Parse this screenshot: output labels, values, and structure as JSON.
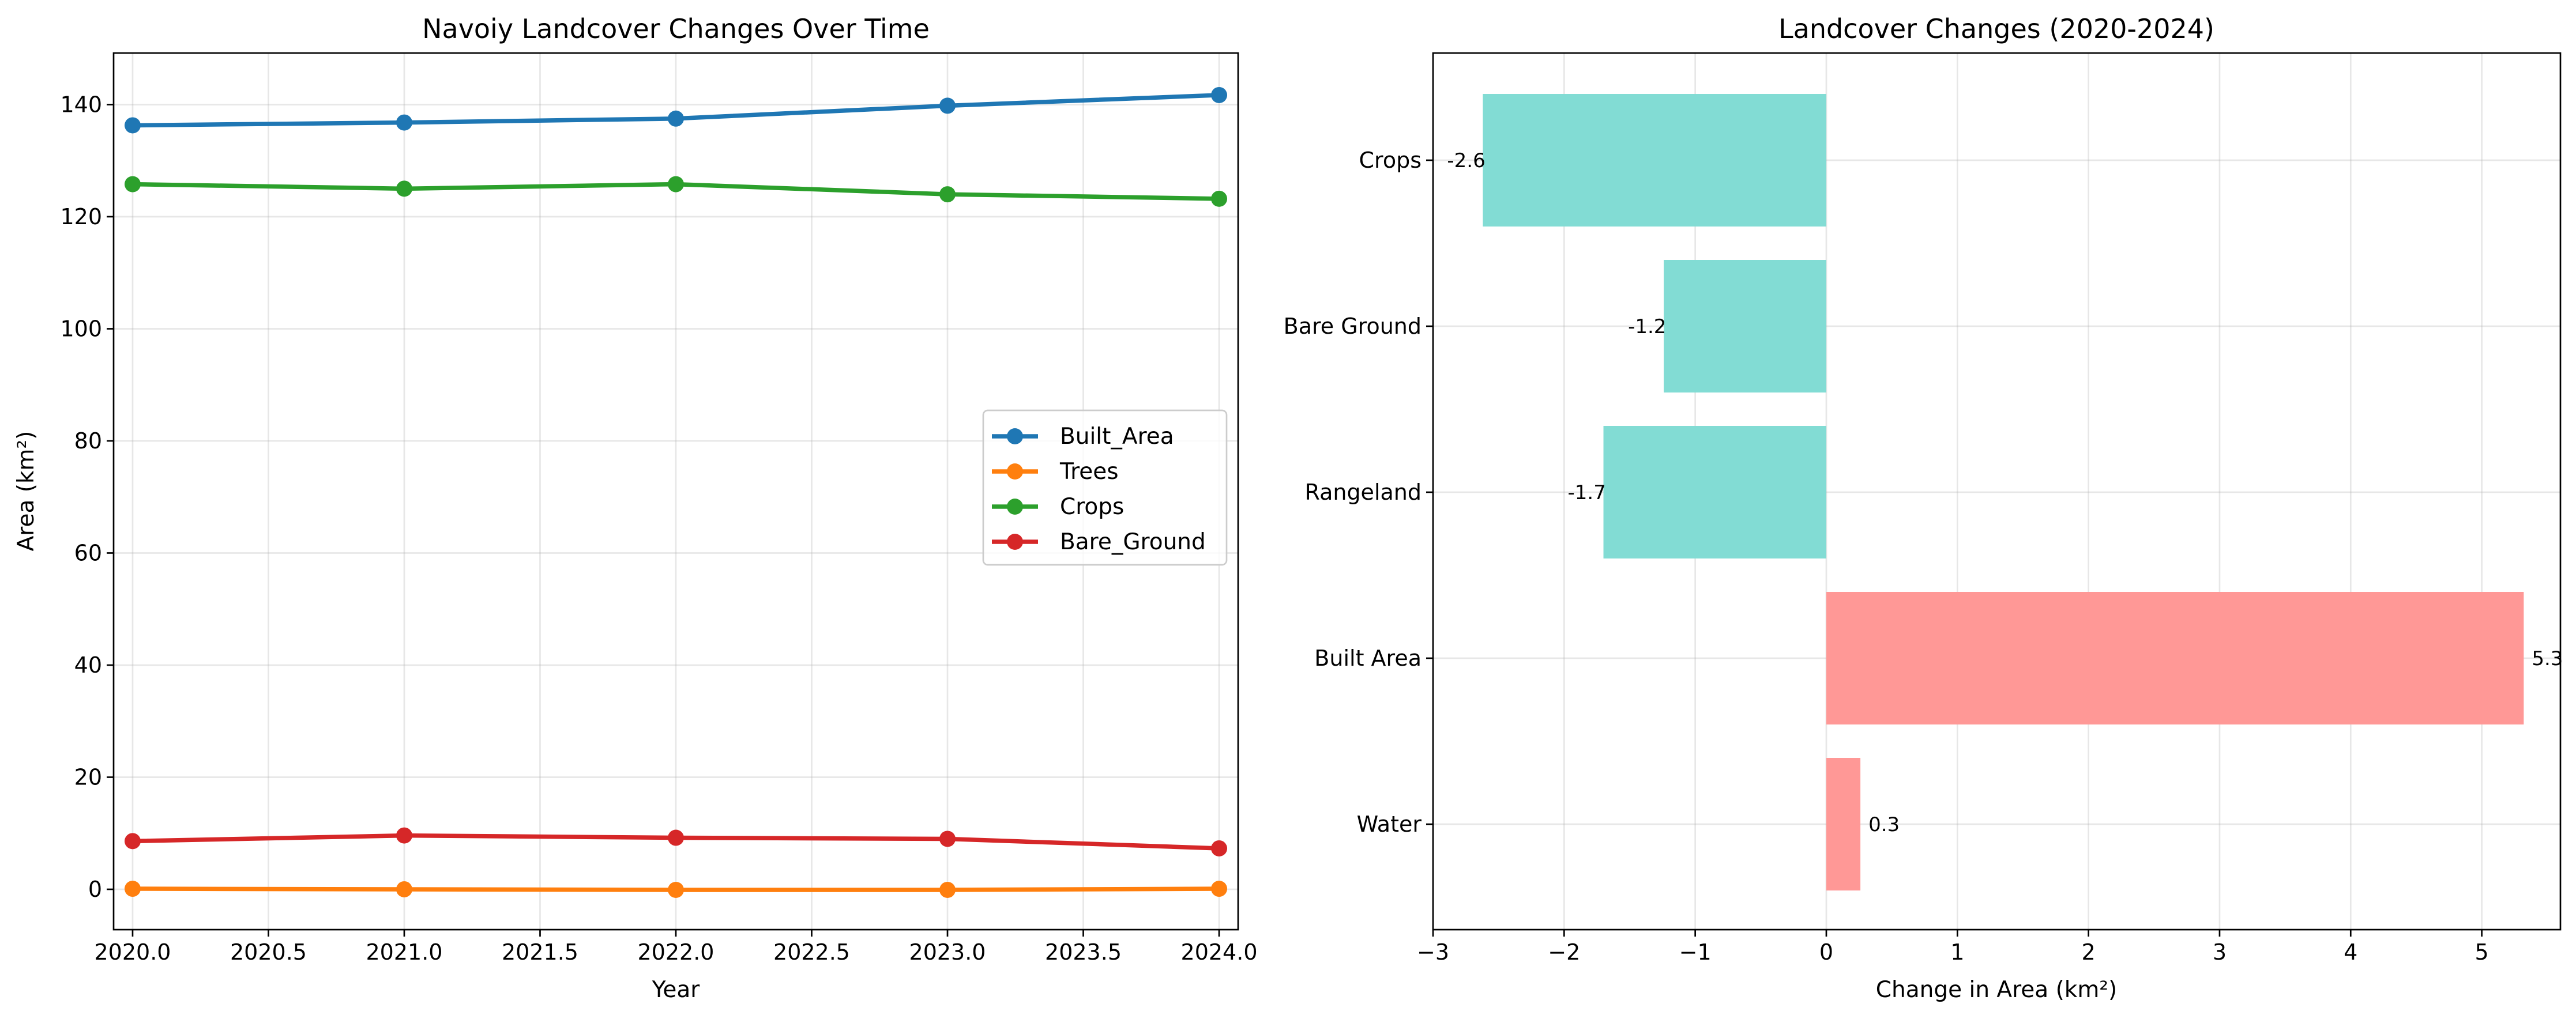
{
  "chart_data": [
    {
      "type": "line",
      "title": "Navoiy Landcover Changes Over Time",
      "xlabel": "Year",
      "ylabel": "Area (km²)",
      "x": [
        2020,
        2021,
        2022,
        2023,
        2024
      ],
      "xlim": [
        2019.93,
        2024.07
      ],
      "ylim": [
        -7.2,
        149.2
      ],
      "xticks": [
        "2020.0",
        "2020.5",
        "2021.0",
        "2021.5",
        "2022.0",
        "2022.5",
        "2023.0",
        "2023.5",
        "2024.0"
      ],
      "yticks": [
        "0",
        "20",
        "40",
        "60",
        "80",
        "100",
        "120",
        "140"
      ],
      "grid": true,
      "legend_position": "center-right",
      "series": [
        {
          "name": "Built_Area",
          "color": "#1f77b4",
          "values": [
            136.3,
            136.8,
            137.5,
            139.8,
            141.7
          ]
        },
        {
          "name": "Trees",
          "color": "#ff7f0e",
          "values": [
            0.1,
            0.0,
            -0.1,
            -0.1,
            0.1
          ]
        },
        {
          "name": "Crops",
          "color": "#2ca02c",
          "values": [
            125.8,
            125.0,
            125.8,
            124.0,
            123.2
          ]
        },
        {
          "name": "Bare_Ground",
          "color": "#d62728",
          "values": [
            8.6,
            9.6,
            9.2,
            9.0,
            7.3
          ]
        }
      ]
    },
    {
      "type": "bar",
      "orientation": "horizontal",
      "title": "Landcover Changes (2020-2024)",
      "xlabel": "Change in Area (km²)",
      "ylabel": "",
      "categories": [
        "Water",
        "Built Area",
        "Rangeland",
        "Bare Ground",
        "Crops"
      ],
      "values": [
        0.26,
        5.32,
        -1.7,
        -1.24,
        -2.62
      ],
      "value_labels": [
        "0.3",
        "5.3",
        "-1.7",
        "-1.2",
        "-2.6"
      ],
      "xlim": [
        -3.0,
        5.6
      ],
      "xticks": [
        "−3",
        "−2",
        "−1",
        "0",
        "1",
        "2",
        "3",
        "4",
        "5"
      ],
      "positive_color": "#ff9896",
      "negative_color": "#82dcd4",
      "grid": true
    }
  ]
}
